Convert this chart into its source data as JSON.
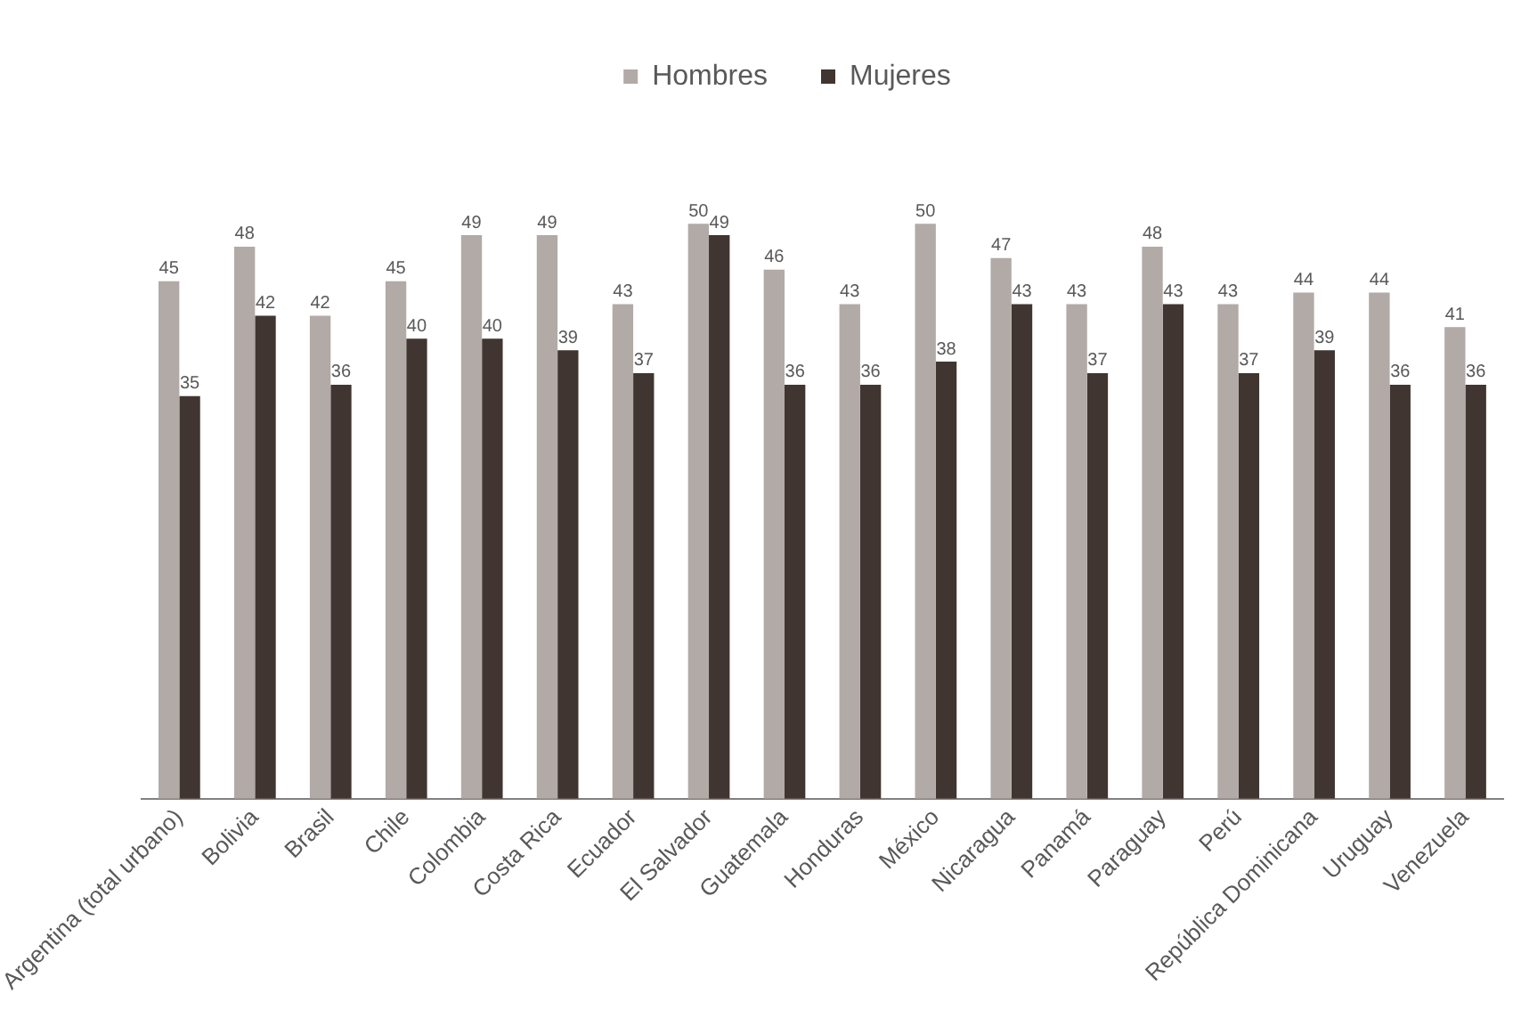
{
  "chart_data": {
    "type": "bar",
    "categories": [
      "Argentina (total urbano)",
      "Bolivia",
      "Brasil",
      "Chile",
      "Colombia",
      "Costa Rica",
      "Ecuador",
      "El Salvador",
      "Guatemala",
      "Honduras",
      "México",
      "Nicaragua",
      "Panamá",
      "Paraguay",
      "Perú",
      "República Dominicana",
      "Uruguay",
      "Venezuela"
    ],
    "series": [
      {
        "name": "Hombres",
        "color": "#b2aaa7",
        "values": [
          45,
          48,
          42,
          45,
          49,
          49,
          43,
          50,
          46,
          43,
          50,
          47,
          43,
          48,
          43,
          44,
          44,
          41
        ]
      },
      {
        "name": "Mujeres",
        "color": "#403530",
        "values": [
          35,
          42,
          36,
          40,
          40,
          39,
          37,
          49,
          36,
          36,
          38,
          43,
          37,
          43,
          37,
          39,
          36,
          36
        ]
      }
    ],
    "data_labels": true,
    "legend": "top",
    "grid": false
  }
}
